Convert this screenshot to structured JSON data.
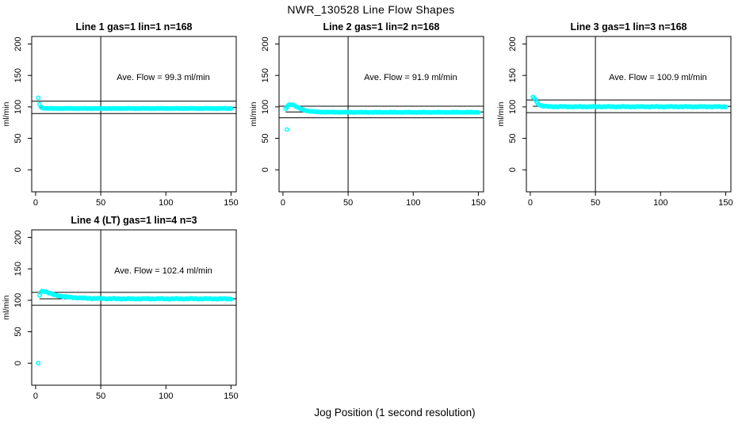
{
  "figure": {
    "title": "NWR_130528  Line Flow Shapes",
    "xlabel": "Jog Position (1 second resolution)",
    "background_color": "#ffffff",
    "marker_color": "#00ffff",
    "line_color": "#000000"
  },
  "chart_data": {
    "type": "scatter",
    "title": "NWR_130528  Line Flow Shapes",
    "xlabel": "Jog Position (1 second resolution)",
    "ylabel": "ml/min",
    "x_ticks": [
      0,
      50,
      100,
      150
    ],
    "y_ticks": [
      0,
      50,
      100,
      150,
      200
    ],
    "xlim": [
      -3,
      154
    ],
    "ylim": [
      -35,
      212
    ],
    "grid": false,
    "vline_x": 50,
    "marker": "open-circle",
    "marker_color": "#00ffff",
    "annotation_pos": [
      98,
      148
    ],
    "subplots": [
      {
        "title": "Line 1 gas=1 lin=1 n=168",
        "annotation": "Ave. Flow =  99.3  ml/min",
        "ave_flow": 99.3,
        "ref_upper": 109.2,
        "ref_lower": 89.4,
        "ripple": 0.35,
        "outliers": [
          [
            2,
            114.5
          ]
        ],
        "keypoints": [
          [
            3,
            104.5
          ],
          [
            4,
            100
          ],
          [
            5,
            98.5
          ],
          [
            6,
            98
          ],
          [
            8,
            97.7
          ],
          [
            10,
            97.6
          ],
          [
            15,
            97.5
          ],
          [
            20,
            97.5
          ],
          [
            30,
            97.5
          ],
          [
            50,
            97.5
          ],
          [
            75,
            97.5
          ],
          [
            100,
            97.5
          ],
          [
            125,
            97.5
          ],
          [
            150,
            97.5
          ]
        ]
      },
      {
        "title": "Line 2 gas=1 lin=2 n=168",
        "annotation": "Ave. Flow =  91.9  ml/min",
        "ave_flow": 91.9,
        "ref_upper": 101.1,
        "ref_lower": 82.7,
        "ripple": 0.35,
        "outliers": [
          [
            3,
            64
          ]
        ],
        "keypoints": [
          [
            2,
            97
          ],
          [
            3,
            100
          ],
          [
            4,
            102.5
          ],
          [
            5,
            103.5
          ],
          [
            6,
            104
          ],
          [
            7,
            103.8
          ],
          [
            8,
            103
          ],
          [
            10,
            100.8
          ],
          [
            12,
            98.5
          ],
          [
            14,
            96.5
          ],
          [
            16,
            95
          ],
          [
            18,
            94
          ],
          [
            20,
            93.2
          ],
          [
            25,
            92.2
          ],
          [
            30,
            91.8
          ],
          [
            40,
            91.5
          ],
          [
            60,
            91.4
          ],
          [
            80,
            91.4
          ],
          [
            100,
            91.4
          ],
          [
            125,
            91.4
          ],
          [
            150,
            91.4
          ]
        ]
      },
      {
        "title": "Line 3 gas=1 lin=3 n=168",
        "annotation": "Ave. Flow =  100.9  ml/min",
        "ave_flow": 100.9,
        "ref_upper": 111.0,
        "ref_lower": 90.8,
        "ripple": 0.7,
        "outliers": [],
        "keypoints": [
          [
            2,
            115.5
          ],
          [
            3,
            114.5
          ],
          [
            4,
            111
          ],
          [
            5,
            107.5
          ],
          [
            6,
            105
          ],
          [
            8,
            102.3
          ],
          [
            10,
            101.2
          ],
          [
            12,
            100.8
          ],
          [
            15,
            100.5
          ],
          [
            20,
            100.4
          ],
          [
            30,
            100.3
          ],
          [
            50,
            100.3
          ],
          [
            75,
            100.3
          ],
          [
            100,
            100.3
          ],
          [
            125,
            100.3
          ],
          [
            150,
            100.3
          ]
        ]
      },
      {
        "title": "Line 4 (LT) gas=1 lin=4 n=3",
        "annotation": "Ave. Flow =  102.4  ml/min",
        "ave_flow": 102.4,
        "ref_upper": 112.6,
        "ref_lower": 92.2,
        "ripple": 0.8,
        "outliers": [
          [
            2,
            0
          ]
        ],
        "keypoints": [
          [
            3,
            108
          ],
          [
            4,
            112.5
          ],
          [
            5,
            114.5
          ],
          [
            6,
            114.8
          ],
          [
            7,
            114.3
          ],
          [
            8,
            113.5
          ],
          [
            10,
            111.8
          ],
          [
            12,
            110.3
          ],
          [
            15,
            108.3
          ],
          [
            20,
            106.3
          ],
          [
            25,
            105
          ],
          [
            30,
            104.2
          ],
          [
            35,
            103.6
          ],
          [
            40,
            103.2
          ],
          [
            50,
            102.7
          ],
          [
            60,
            102.4
          ],
          [
            70,
            102.3
          ],
          [
            80,
            102.3
          ],
          [
            90,
            102.4
          ],
          [
            100,
            102.3
          ],
          [
            110,
            102.3
          ],
          [
            120,
            102.4
          ],
          [
            130,
            102.3
          ],
          [
            140,
            102.3
          ],
          [
            150,
            102.3
          ]
        ]
      }
    ]
  }
}
